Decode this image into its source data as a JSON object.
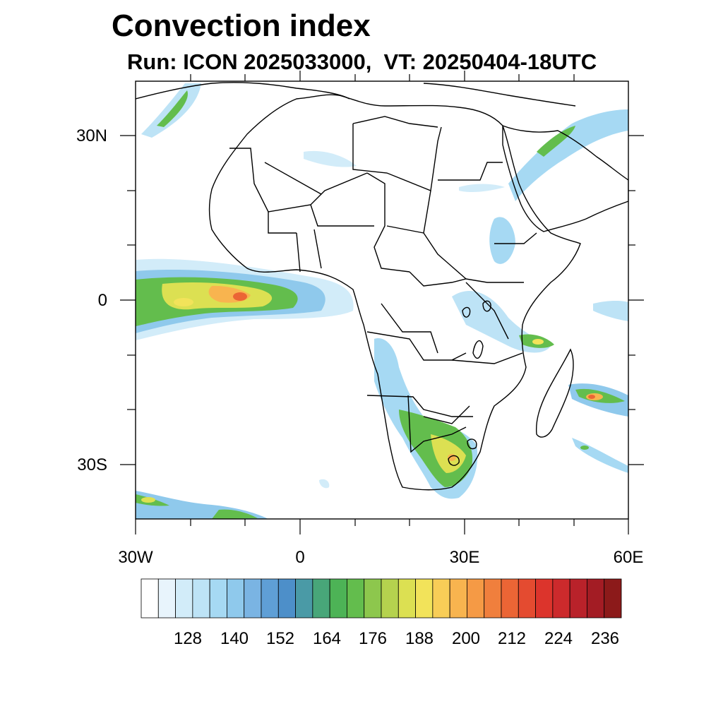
{
  "title": "Convection index",
  "subtitle": "Run: ICON 2025033000,  VT: 20250404-18UTC",
  "axes": {
    "lat_labels": [
      "30N",
      "0",
      "30S"
    ],
    "lon_labels": [
      "30W",
      "0",
      "30E",
      "60E"
    ]
  },
  "colorbar": {
    "colors": [
      "#ffffff",
      "#e8f4fc",
      "#d2ecf9",
      "#bde3f6",
      "#a6d9f3",
      "#8fc9ec",
      "#7ab4e3",
      "#5f9fd6",
      "#4d8fc9",
      "#4a9aa6",
      "#48a679",
      "#4db356",
      "#63bd4d",
      "#8dc74d",
      "#b5d24e",
      "#dce052",
      "#f2e35a",
      "#f8cd57",
      "#f8b44f",
      "#f59a45",
      "#f07f3d",
      "#eb6535",
      "#e44b30",
      "#dc342c",
      "#cc2a2c",
      "#b9222a",
      "#a31c24",
      "#8c1a1a"
    ],
    "tick_labels": [
      "128",
      "140",
      "152",
      "164",
      "176",
      "188",
      "200",
      "212",
      "224",
      "236"
    ]
  }
}
